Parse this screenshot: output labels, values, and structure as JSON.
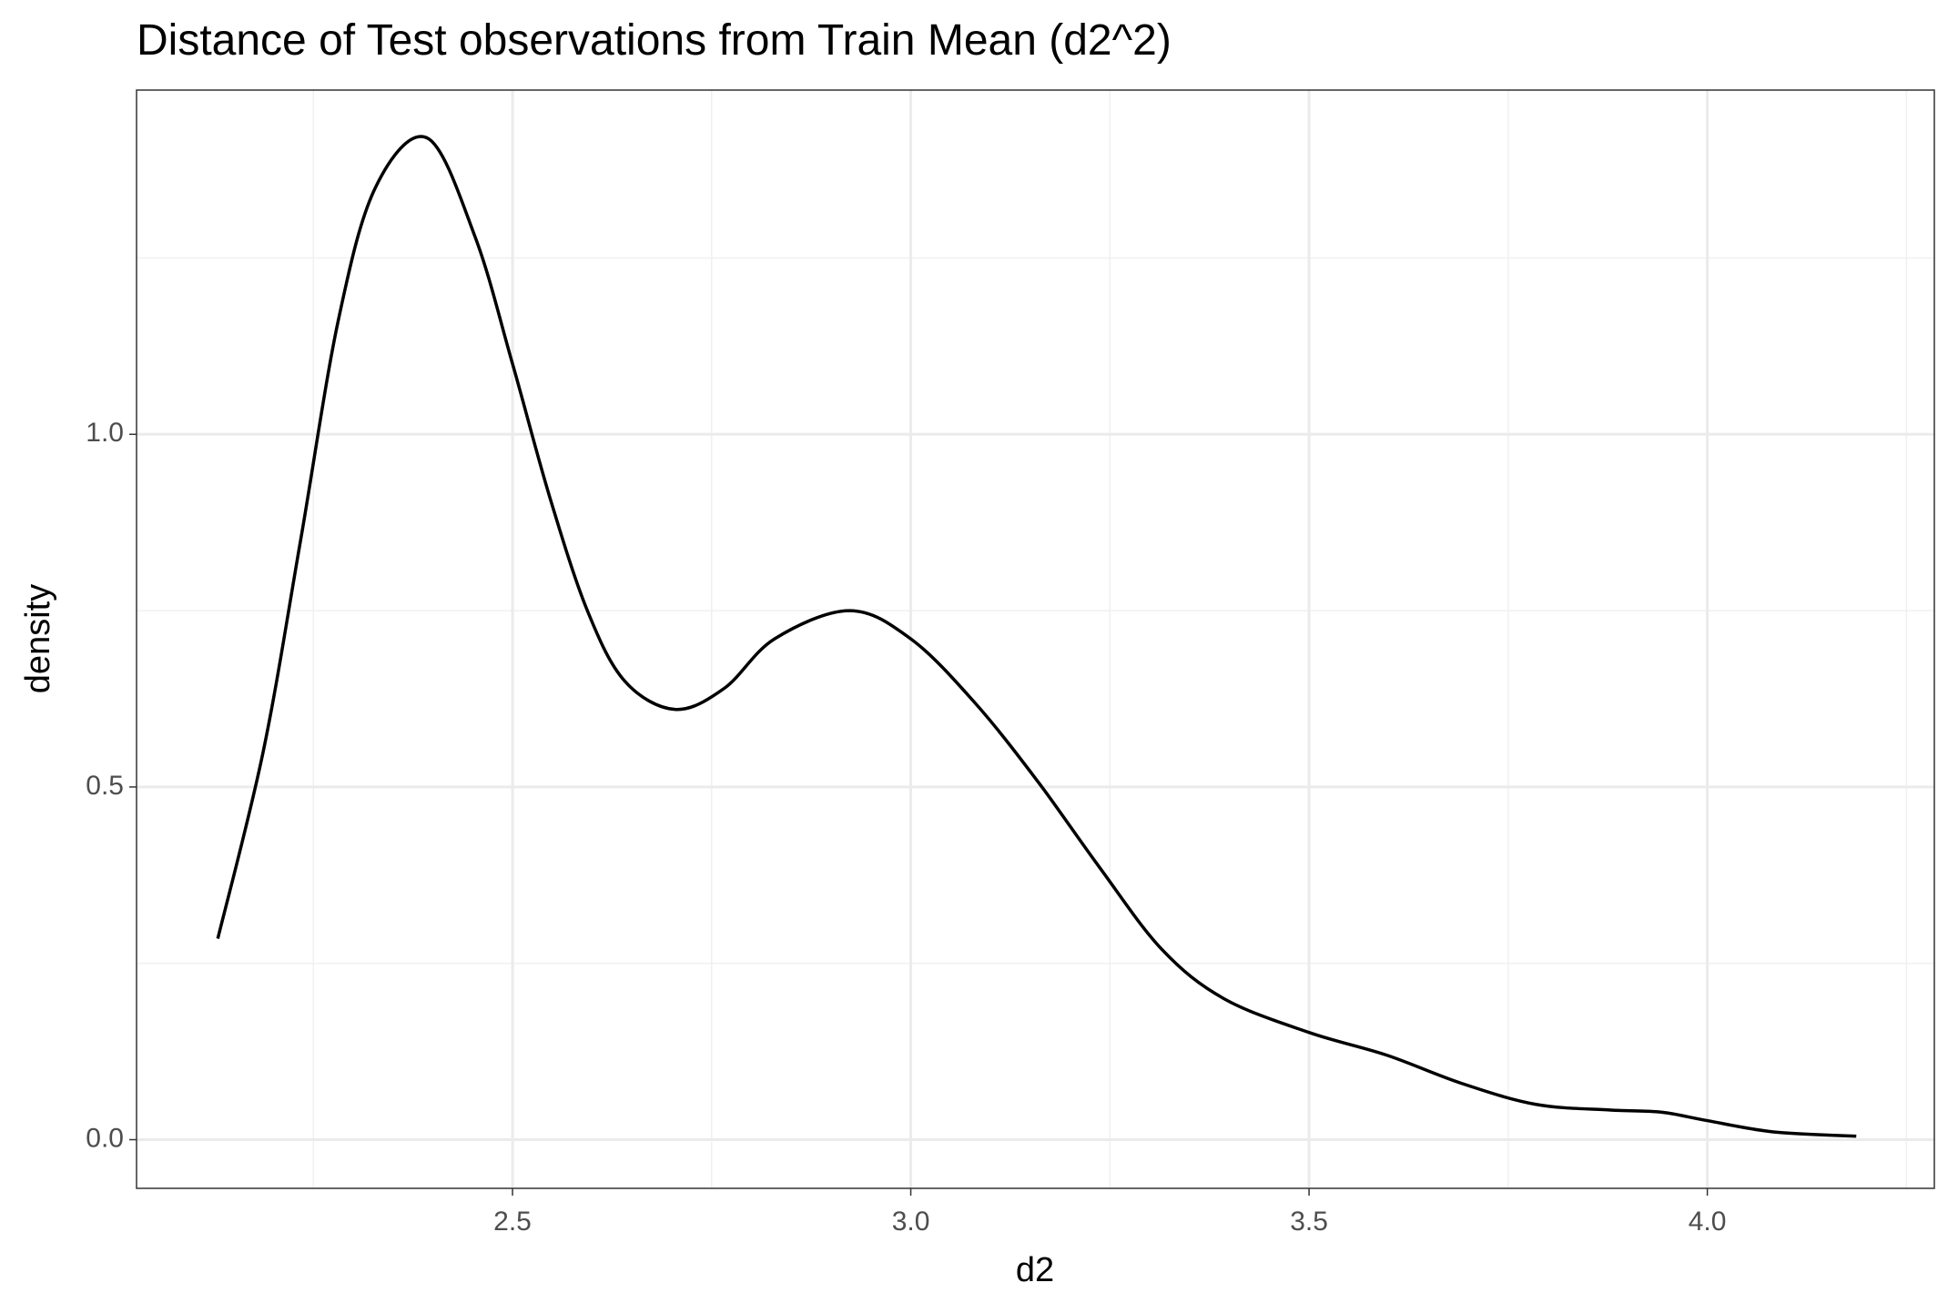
{
  "chart_data": {
    "type": "line",
    "title": "Distance of Test observations from Train Mean (d2^2)",
    "x_label": "d2",
    "y_label": "density",
    "x": [
      2.13,
      2.187,
      2.234,
      2.281,
      2.328,
      2.393,
      2.453,
      2.5,
      2.547,
      2.594,
      2.641,
      2.704,
      2.766,
      2.829,
      2.923,
      3.0,
      3.08,
      3.158,
      3.237,
      3.315,
      3.393,
      3.5,
      3.597,
      3.691,
      3.785,
      3.879,
      3.942,
      4.0,
      4.083,
      4.187
    ],
    "series": [
      {
        "color": "#000000",
        "values": [
          0.285,
          0.55,
          0.85,
          1.16,
          1.35,
          1.42,
          1.28,
          1.1,
          0.91,
          0.75,
          0.65,
          0.61,
          0.64,
          0.71,
          0.75,
          0.71,
          0.62,
          0.51,
          0.386,
          0.27,
          0.2,
          0.152,
          0.12,
          0.08,
          0.05,
          0.042,
          0.039,
          0.027,
          0.011,
          0.005
        ]
      }
    ],
    "xlim": [
      2.028,
      4.285
    ],
    "ylim": [
      -0.069,
      1.488
    ],
    "xticks": [
      2.5,
      {
        "value": 3,
        "label": "3.0"
      },
      3.5,
      {
        "value": 4,
        "label": "4.0"
      }
    ],
    "yticks": [
      {
        "value": 0,
        "label": "0.0"
      },
      0.5,
      {
        "value": 1,
        "label": "1.0"
      }
    ],
    "xminor": [
      2.25,
      2.75,
      3.25,
      3.75,
      4.25
    ],
    "yminor": [
      0.25,
      0.75,
      1.25
    ],
    "grid": true
  }
}
